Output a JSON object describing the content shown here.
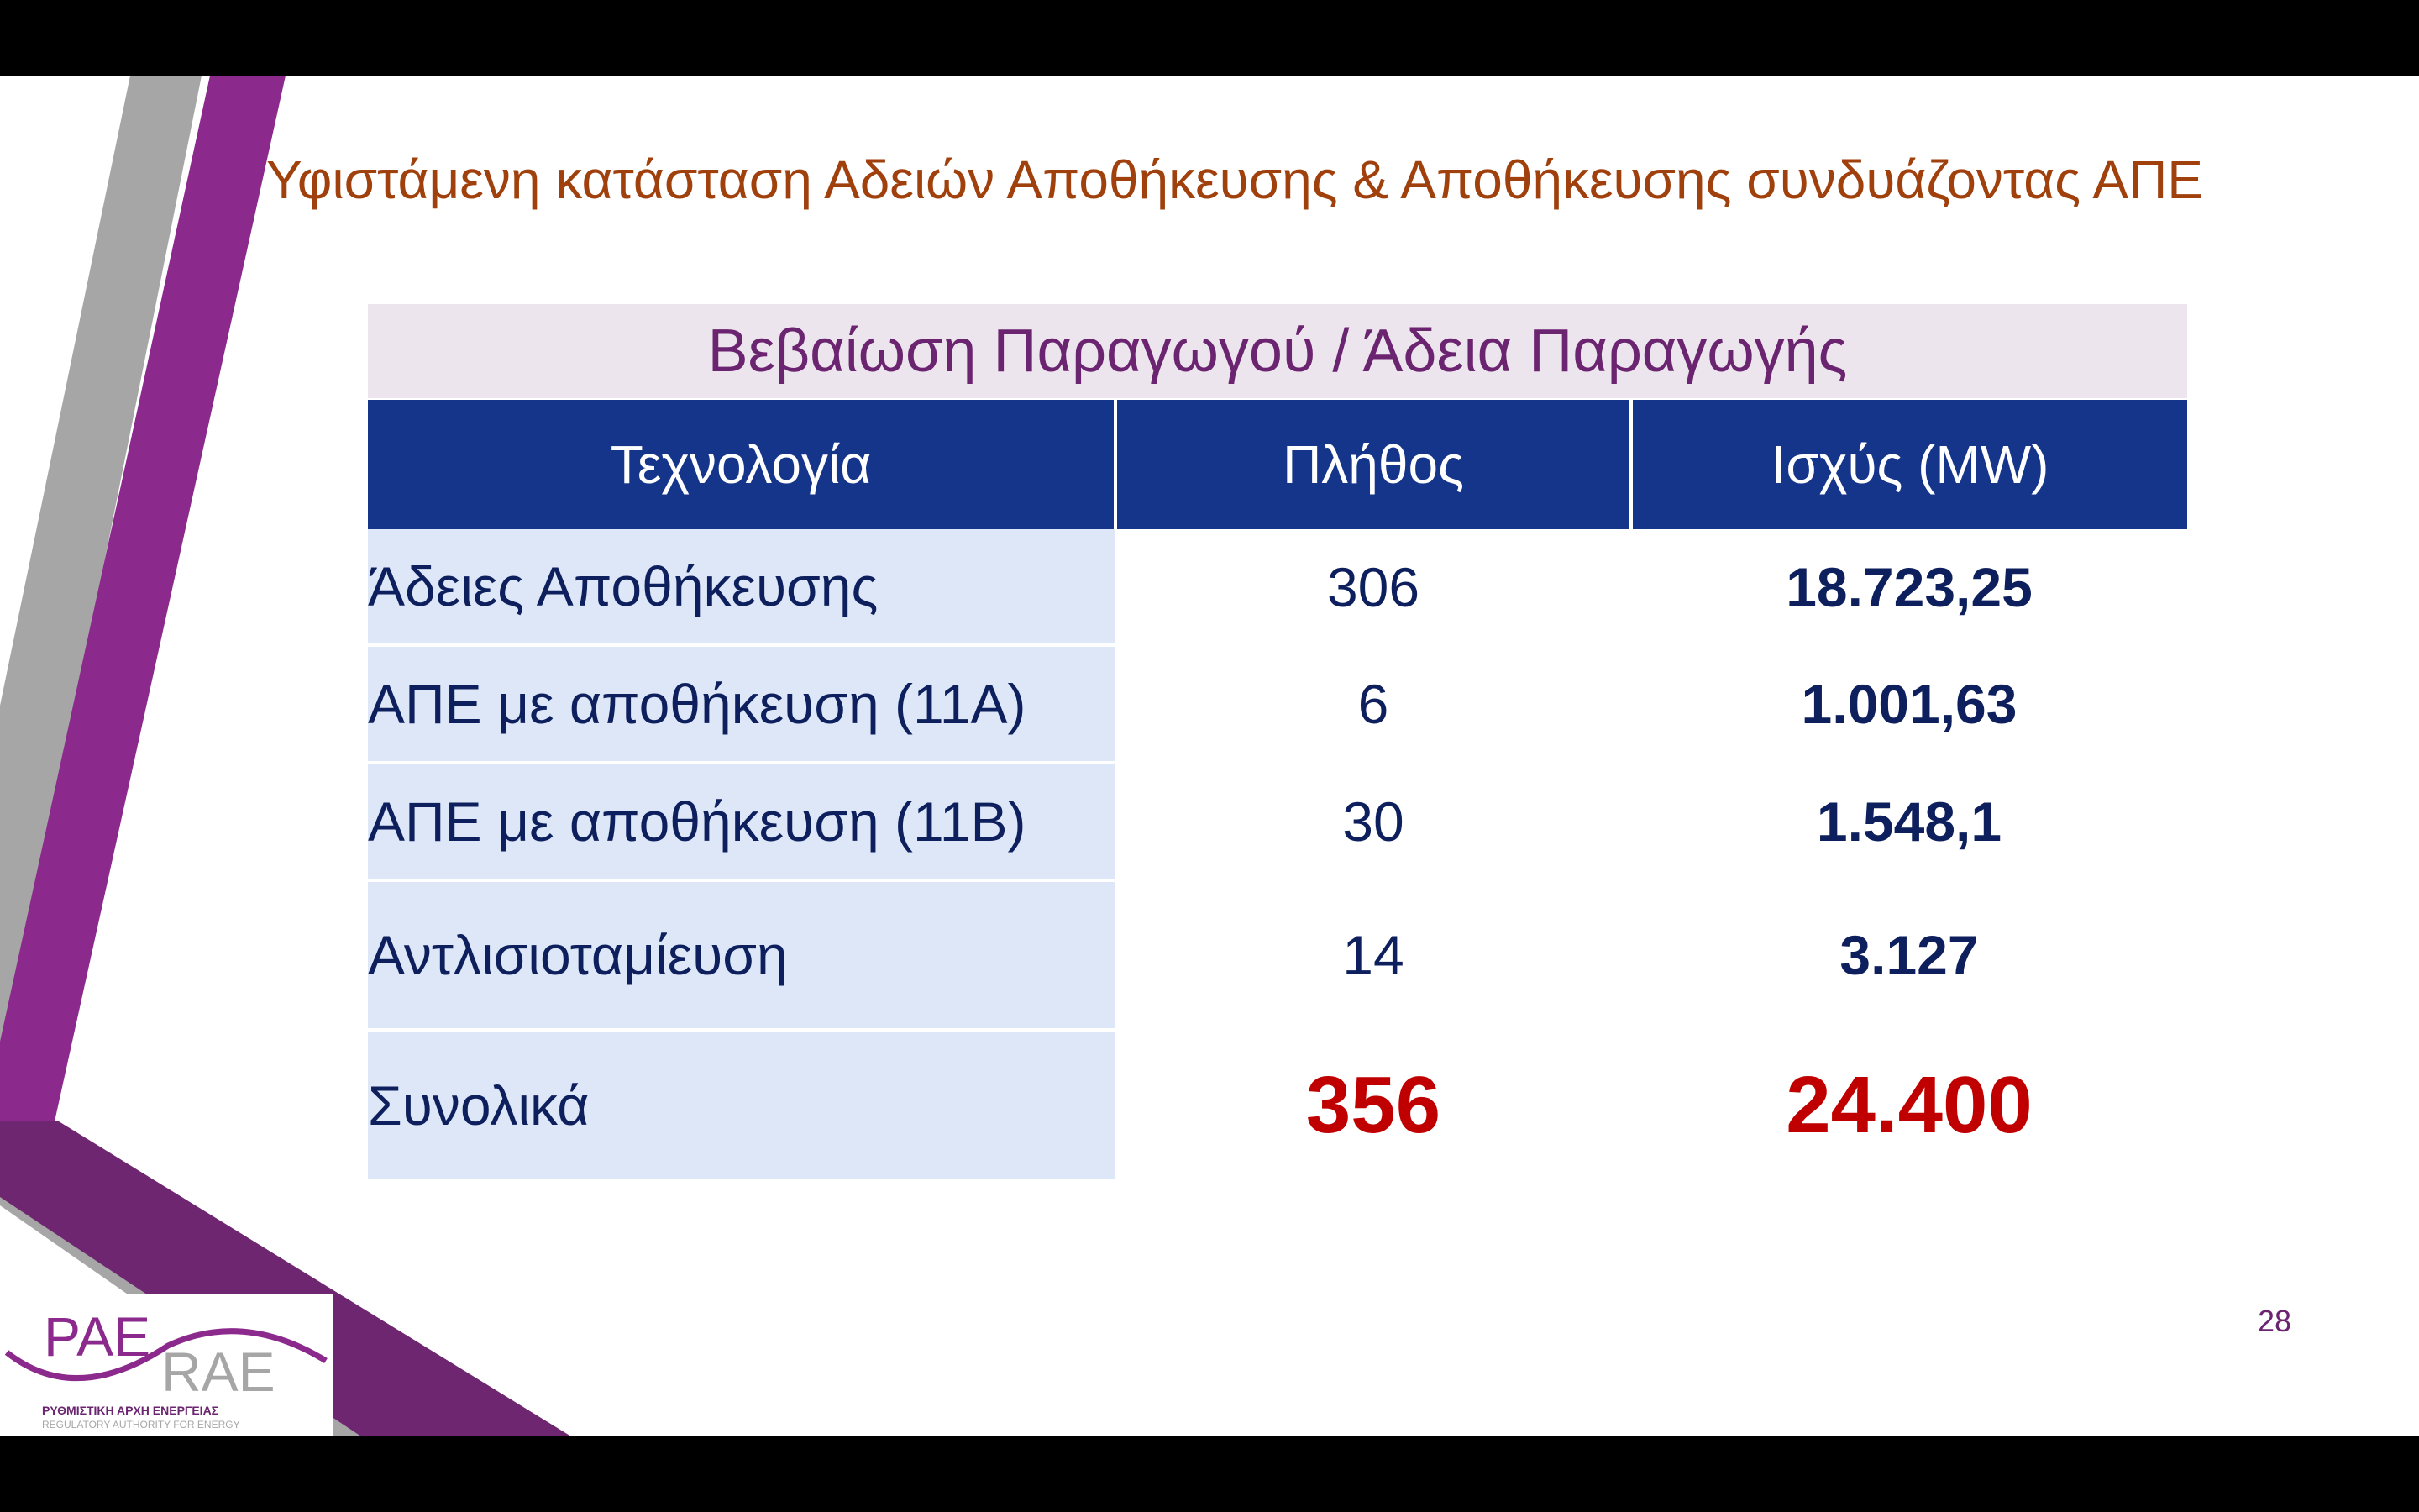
{
  "slide": {
    "title": "Υφιστάμενη κατάσταση Αδειών Αποθήκευσης & Αποθήκευσης συνδυάζοντας ΑΠΕ",
    "banner": "Βεβαίωση Παραγωγού / Άδεια Παραγωγής",
    "page_number": "28"
  },
  "table": {
    "headers": [
      "Τεχνολογία",
      "Πλήθος",
      "Ισχύς (MW)"
    ],
    "rows": [
      {
        "tech": "Άδειες Αποθήκευσης",
        "count": "306",
        "power": "18.723,25"
      },
      {
        "tech": "ΑΠΕ με αποθήκευση (11Α)",
        "count": "6",
        "power": "1.001,63"
      },
      {
        "tech": "ΑΠΕ με αποθήκευση (11Β)",
        "count": "30",
        "power": "1.548,1"
      },
      {
        "tech": "Αντλισιοταμίευση",
        "count": "14",
        "power": "3.127"
      },
      {
        "tech": "Συνολικά",
        "count": "356",
        "power": "24.400"
      }
    ]
  },
  "logo": {
    "greek": "ΡΑΕ",
    "latin": "RAE",
    "line1": "ΡΥΘΜΙΣΤΙΚΗ ΑΡΧΗ ΕΝΕΡΓΕΙΑΣ",
    "line2": "REGULATORY AUTHORITY FOR ENERGY"
  },
  "colors": {
    "title": "#a0410d",
    "banner_text": "#6b2470",
    "header_bg": "#14358a",
    "row_bg": "#dde7f8",
    "value_text": "#0d1f5c",
    "total_text": "#c00000",
    "purple_accent": "#8b2a8c",
    "gray_accent": "#a6a6a6"
  }
}
